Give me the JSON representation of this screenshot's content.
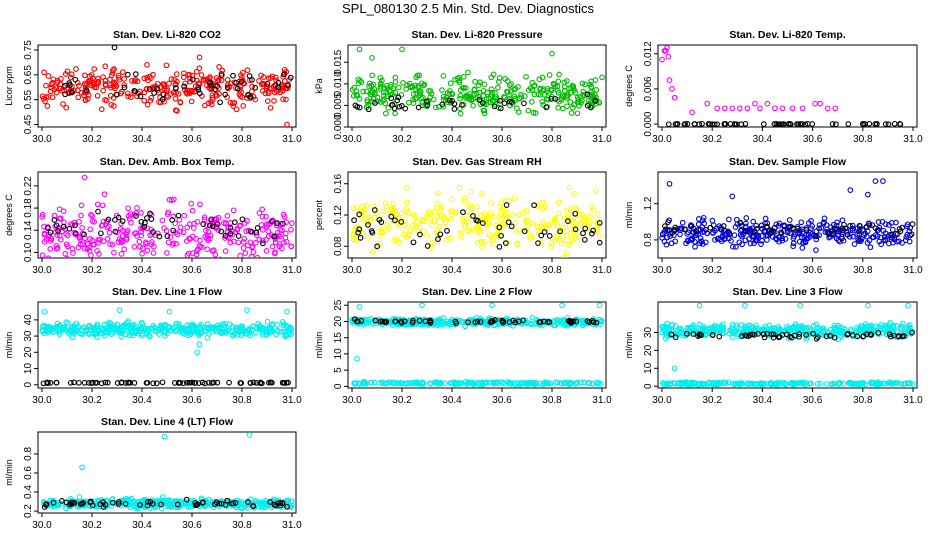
{
  "figure": {
    "title": "SPL_080130  2.5 Min. Std. Dev. Diagnostics"
  },
  "chart_data": [
    {
      "type": "scatter",
      "title": "Stan. Dev. Li-820 CO2",
      "xlabel": "",
      "ylabel": "Licor ppm",
      "xlim": [
        30.0,
        31.0
      ],
      "ylim": [
        0.44,
        0.77
      ],
      "xticks": [
        "30.0",
        "30.2",
        "30.4",
        "30.6",
        "30.8",
        "31.0"
      ],
      "yticks": [
        "0.45",
        "0.55",
        "0.65",
        "0.75"
      ],
      "series": [
        {
          "color": "#ff0000",
          "n": 320,
          "base": 0.6,
          "spread": 0.11,
          "outliers": [
            [
              30.42,
              0.69
            ],
            [
              30.98,
              0.45
            ],
            [
              30.63,
              0.72
            ]
          ]
        },
        {
          "color": "#000000",
          "n": 50,
          "base": 0.6,
          "spread": 0.08,
          "outliers": [
            [
              30.29,
              0.76
            ]
          ]
        }
      ]
    },
    {
      "type": "scatter",
      "title": "Stan. Dev. Li-820 Pressure",
      "xlabel": "",
      "ylabel": "kPa",
      "xlim": [
        30.0,
        31.0
      ],
      "ylim": [
        0.0,
        0.019
      ],
      "xticks": [
        "30.0",
        "30.2",
        "30.4",
        "30.6",
        "30.8",
        "31.0"
      ],
      "yticks": [
        "0.000",
        "0.005",
        "0.010",
        "0.015"
      ],
      "series": [
        {
          "color": "#00bb00",
          "n": 330,
          "base": 0.0075,
          "spread": 0.006,
          "outliers": [
            [
              30.03,
              0.018
            ],
            [
              30.08,
              0.016
            ],
            [
              30.2,
              0.018
            ],
            [
              30.8,
              0.017
            ],
            [
              31.0,
              0.0115
            ]
          ]
        },
        {
          "color": "#000000",
          "n": 40,
          "base": 0.0055,
          "spread": 0.003,
          "outliers": []
        }
      ]
    },
    {
      "type": "scatter",
      "title": "Stan. Dev. Li-820 Temp.",
      "xlabel": "",
      "ylabel": "degrees C",
      "xlim": [
        30.0,
        31.0
      ],
      "ylim": [
        -0.0005,
        0.0135
      ],
      "xticks": [
        "30.0",
        "30.2",
        "30.4",
        "30.6",
        "30.8",
        "31.0"
      ],
      "yticks": [
        "0.000",
        "0.006",
        "0.012"
      ],
      "series": [
        {
          "color": "#ff00ff",
          "n": 0,
          "base": 0,
          "spread": 0,
          "outliers": [
            [
              30.0,
              0.011
            ],
            [
              30.01,
              0.0125
            ],
            [
              30.015,
              0.0125
            ],
            [
              30.02,
              0.013
            ],
            [
              30.025,
              0.0115
            ],
            [
              30.03,
              0.0075
            ],
            [
              30.04,
              0.006
            ],
            [
              30.05,
              0.0045
            ],
            [
              30.12,
              0.002
            ],
            [
              30.18,
              0.0035
            ],
            [
              30.22,
              0.0027
            ],
            [
              30.25,
              0.0027
            ],
            [
              30.28,
              0.0027
            ],
            [
              30.31,
              0.0027
            ],
            [
              30.34,
              0.0027
            ],
            [
              30.37,
              0.0035
            ],
            [
              30.39,
              0.0027
            ],
            [
              30.42,
              0.0035
            ],
            [
              30.45,
              0.0027
            ],
            [
              30.48,
              0.0027
            ],
            [
              30.52,
              0.0027
            ],
            [
              30.56,
              0.0027
            ],
            [
              30.61,
              0.0035
            ],
            [
              30.63,
              0.0035
            ],
            [
              30.66,
              0.0027
            ],
            [
              30.69,
              0.0027
            ]
          ]
        },
        {
          "color": "#000000",
          "n": 60,
          "base": 0.0,
          "spread": 0.0001,
          "outliers": []
        }
      ]
    },
    {
      "type": "scatter",
      "title": "Stan. Dev. Amb. Box Temp.",
      "xlabel": "",
      "ylabel": "degrees C",
      "xlim": [
        30.0,
        31.0
      ],
      "ylim": [
        0.09,
        0.245
      ],
      "xticks": [
        "30.0",
        "30.2",
        "30.4",
        "30.6",
        "30.8",
        "31.0"
      ],
      "yticks": [
        "0.10",
        "0.14",
        "0.18",
        "0.22"
      ],
      "series": [
        {
          "color": "#ff00ff",
          "n": 320,
          "base": 0.135,
          "spread": 0.07,
          "outliers": [
            [
              30.17,
              0.235
            ],
            [
              30.25,
              0.205
            ],
            [
              30.51,
              0.195
            ]
          ]
        },
        {
          "color": "#000000",
          "n": 50,
          "base": 0.145,
          "spread": 0.04,
          "outliers": []
        }
      ]
    },
    {
      "type": "scatter",
      "title": "Stan. Dev. Gas Stream RH",
      "xlabel": "",
      "ylabel": "percent",
      "xlim": [
        30.0,
        31.0
      ],
      "ylim": [
        0.065,
        0.175
      ],
      "xticks": [
        "30.0",
        "30.2",
        "30.4",
        "30.6",
        "30.8",
        "31.0"
      ],
      "yticks": [
        "0.08",
        "0.12",
        "0.16"
      ],
      "series": [
        {
          "color": "#ffff00",
          "n": 300,
          "base": 0.11,
          "spread": 0.05,
          "outliers": [
            [
              30.22,
              0.155
            ],
            [
              30.43,
              0.155
            ],
            [
              30.87,
              0.155
            ]
          ]
        },
        {
          "color": "#000000",
          "n": 50,
          "base": 0.105,
          "spread": 0.035,
          "outliers": []
        }
      ]
    },
    {
      "type": "scatter",
      "title": "Stan. Dev. Sample Flow",
      "xlabel": "",
      "ylabel": "ml/min",
      "xlim": [
        30.0,
        31.0
      ],
      "ylim": [
        0.6,
        1.55
      ],
      "xticks": [
        "30.0",
        "30.2",
        "30.4",
        "30.6",
        "30.8",
        "31.0"
      ],
      "yticks": [
        "0.8",
        "1.2"
      ],
      "series": [
        {
          "color": "#0000dd",
          "n": 330,
          "base": 0.88,
          "spread": 0.22,
          "outliers": [
            [
              30.03,
              1.42
            ],
            [
              30.28,
              1.28
            ],
            [
              30.75,
              1.35
            ],
            [
              30.85,
              1.45
            ],
            [
              30.88,
              1.45
            ],
            [
              30.82,
              1.3
            ]
          ]
        },
        {
          "color": "#000000",
          "n": 50,
          "base": 0.9,
          "spread": 0.12,
          "outliers": []
        }
      ]
    },
    {
      "type": "scatter",
      "title": "Stan. Dev. Line 1 Flow",
      "xlabel": "",
      "ylabel": "ml/min",
      "xlim": [
        30.0,
        31.0
      ],
      "ylim": [
        -2,
        51
      ],
      "xticks": [
        "30.0",
        "30.2",
        "30.4",
        "30.6",
        "30.8",
        "31.0"
      ],
      "yticks": [
        "0",
        "10",
        "20",
        "30",
        "40"
      ],
      "series": [
        {
          "color": "#00eeee",
          "n": 400,
          "base": 34,
          "spread": 6,
          "outliers": [
            [
              30.01,
              45
            ],
            [
              30.31,
              46
            ],
            [
              30.51,
              45
            ],
            [
              30.82,
              46
            ],
            [
              30.98,
              45
            ],
            [
              30.62,
              20
            ],
            [
              30.63,
              25
            ]
          ]
        },
        {
          "color": "#000000",
          "n": 70,
          "base": 1.2,
          "spread": 0.5,
          "outliers": []
        }
      ]
    },
    {
      "type": "scatter",
      "title": "Stan. Dev. Line 2 Flow",
      "xlabel": "",
      "ylabel": "ml/min",
      "xlim": [
        30.0,
        31.0
      ],
      "ylim": [
        -0.5,
        26
      ],
      "xticks": [
        "30.0",
        "30.2",
        "30.4",
        "30.6",
        "30.8",
        "31.0"
      ],
      "yticks": [
        "0",
        "5",
        "10",
        "15",
        "20",
        "25"
      ],
      "series": [
        {
          "color": "#00eeee",
          "n": 400,
          "base": 19.8,
          "spread": 1.6,
          "outliers": [
            [
              30.03,
              24.5
            ],
            [
              30.28,
              25
            ],
            [
              30.56,
              25
            ],
            [
              30.84,
              25
            ],
            [
              30.99,
              25
            ],
            [
              30.02,
              8.5
            ]
          ]
        },
        {
          "color": "#00eeee",
          "n": 200,
          "base": 1.0,
          "spread": 0.5,
          "outliers": []
        },
        {
          "color": "#000000",
          "n": 60,
          "base": 20.0,
          "spread": 0.8,
          "outliers": []
        }
      ]
    },
    {
      "type": "scatter",
      "title": "Stan. Dev. Line 3 Flow",
      "xlabel": "",
      "ylabel": "ml/min",
      "xlim": [
        30.0,
        31.0
      ],
      "ylim": [
        -1,
        47
      ],
      "xticks": [
        "30.0",
        "30.2",
        "30.4",
        "30.6",
        "30.8",
        "31.0"
      ],
      "yticks": [
        "0",
        "10",
        "20",
        "30"
      ],
      "series": [
        {
          "color": "#00eeee",
          "n": 400,
          "base": 31,
          "spread": 5,
          "outliers": [
            [
              30.15,
              45
            ],
            [
              30.33,
              45
            ],
            [
              30.55,
              45
            ],
            [
              30.82,
              45
            ],
            [
              30.98,
              45
            ],
            [
              30.05,
              10
            ],
            [
              30.02,
              35
            ]
          ]
        },
        {
          "color": "#00eeee",
          "n": 200,
          "base": 1.5,
          "spread": 1.0,
          "outliers": []
        },
        {
          "color": "#000000",
          "n": 60,
          "base": 28.5,
          "spread": 2.5,
          "outliers": []
        }
      ]
    },
    {
      "type": "scatter",
      "title": "Stan. Dev. Line 4 (LT) Flow",
      "xlabel": "",
      "ylabel": "ml/min",
      "xlim": [
        30.0,
        31.0
      ],
      "ylim": [
        0.18,
        1.03
      ],
      "xticks": [
        "30.0",
        "30.2",
        "30.4",
        "30.6",
        "30.8",
        "31.0"
      ],
      "yticks": [
        "0.2",
        "0.4",
        "0.6",
        "0.8"
      ],
      "series": [
        {
          "color": "#00eeee",
          "n": 400,
          "base": 0.28,
          "spread": 0.07,
          "outliers": [
            [
              30.16,
              0.66
            ],
            [
              30.49,
              0.98
            ],
            [
              30.83,
              1.0
            ]
          ]
        },
        {
          "color": "#000000",
          "n": 60,
          "base": 0.28,
          "spread": 0.05,
          "outliers": []
        }
      ]
    }
  ]
}
